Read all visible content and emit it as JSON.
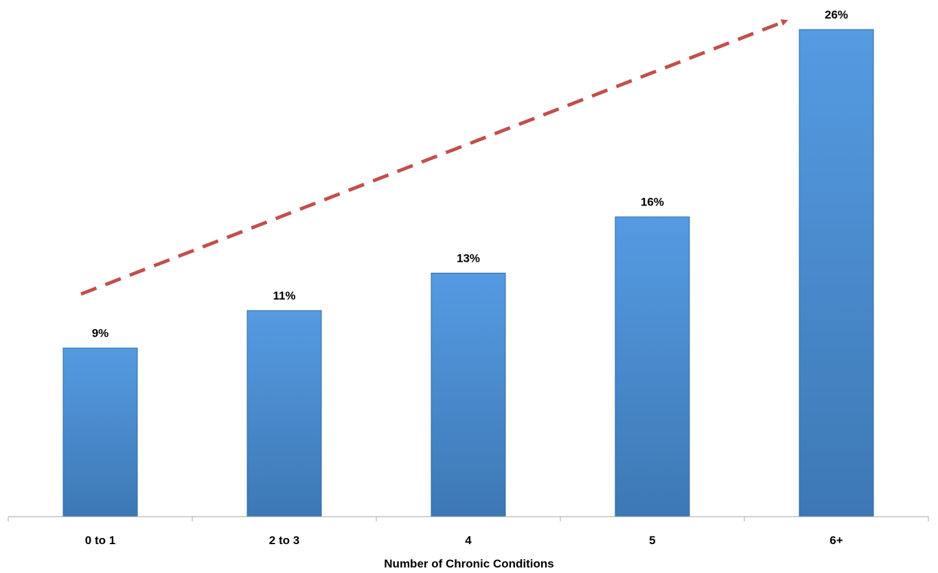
{
  "chart_data": {
    "type": "bar",
    "categories": [
      "0 to 1",
      "2 to 3",
      "4",
      "5",
      "6+"
    ],
    "values": [
      9,
      11,
      13,
      16,
      26
    ],
    "data_labels": [
      "9%",
      "11%",
      "13%",
      "16%",
      "26%"
    ],
    "title": "",
    "xlabel": "Number of Chronic Conditions",
    "ylabel": "",
    "ylim": [
      0,
      26
    ],
    "grid": false,
    "legend": "none",
    "annotation": "dashed-trend-arrow",
    "colors": {
      "bar_top": "#559be2",
      "bar_bottom": "#3d78b4",
      "bar_edge": "#2e6aa6",
      "arrow": "#c0504d",
      "axis": "#a6a6a6",
      "text": "#000000"
    }
  }
}
